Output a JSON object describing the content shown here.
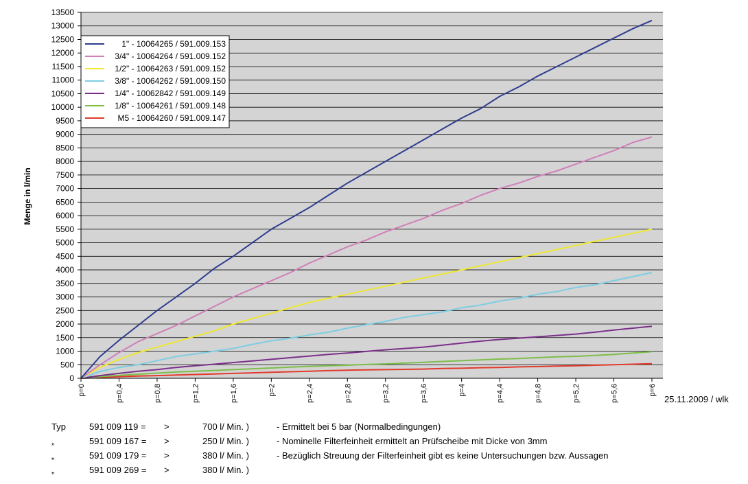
{
  "chart_data": {
    "type": "line",
    "ylabel": "Menge in l/min",
    "xlabel": "",
    "ylim": [
      0,
      13500
    ],
    "yticks": [
      0,
      500,
      1000,
      1500,
      2000,
      2500,
      3000,
      3500,
      4000,
      4500,
      5000,
      5500,
      6000,
      6500,
      7000,
      7500,
      8000,
      8500,
      9000,
      9500,
      10000,
      10500,
      11000,
      11500,
      12000,
      12500,
      13000,
      13500
    ],
    "xlim": [
      0,
      6
    ],
    "xtick_values": [
      0,
      0.4,
      0.8,
      1.2,
      1.6,
      2,
      2.4,
      2.8,
      3.2,
      3.6,
      4,
      4.4,
      4.8,
      5.2,
      5.6,
      6
    ],
    "xtick_labels": [
      "p=0",
      "p=0,4",
      "p=0,8",
      "p=1,2",
      "p=1,6",
      "p=2",
      "p=2,4",
      "p=2,8",
      "p=3,2",
      "p=3,6",
      "p=4",
      "p=4,4",
      "p=4,8",
      "p=5,2",
      "p=5,6",
      "p=6"
    ],
    "grid": true,
    "legend_position": "top-left",
    "x": [
      0,
      0.2,
      0.4,
      0.6,
      0.8,
      1.0,
      1.2,
      1.4,
      1.6,
      1.8,
      2.0,
      2.2,
      2.4,
      2.6,
      2.8,
      3.0,
      3.2,
      3.4,
      3.6,
      3.8,
      4.0,
      4.2,
      4.4,
      4.6,
      4.8,
      5.0,
      5.2,
      5.4,
      5.6,
      5.8,
      6.0
    ],
    "series": [
      {
        "name": "1\" - 10064265 / 591.009.153",
        "color": "#2e3d8f",
        "values": [
          0,
          800,
          1400,
          1950,
          2500,
          3000,
          3500,
          4050,
          4500,
          5000,
          5500,
          5900,
          6300,
          6750,
          7200,
          7600,
          8000,
          8400,
          8800,
          9200,
          9600,
          9950,
          10400,
          10750,
          11150,
          11500,
          11850,
          12200,
          12550,
          12900,
          13200
        ]
      },
      {
        "name": "3/4\" - 10064264 / 591.009.152",
        "color": "#d07fb8",
        "values": [
          0,
          500,
          950,
          1350,
          1650,
          1950,
          2300,
          2650,
          3000,
          3300,
          3600,
          3900,
          4250,
          4550,
          4850,
          5100,
          5400,
          5650,
          5900,
          6200,
          6450,
          6750,
          7000,
          7200,
          7450,
          7650,
          7900,
          8150,
          8400,
          8700,
          8900
        ]
      },
      {
        "name": "1/2\" - 10064263 / 591.009.152",
        "color": "#f0e832",
        "values": [
          0,
          400,
          700,
          950,
          1150,
          1350,
          1550,
          1750,
          2000,
          2200,
          2400,
          2600,
          2800,
          2950,
          3100,
          3250,
          3400,
          3550,
          3700,
          3850,
          4000,
          4150,
          4300,
          4450,
          4600,
          4750,
          4900,
          5050,
          5200,
          5350,
          5500
        ]
      },
      {
        "name": "3/8\" - 10064262 / 591.009.150",
        "color": "#7ccde3",
        "values": [
          0,
          250,
          400,
          500,
          650,
          800,
          900,
          1000,
          1100,
          1250,
          1380,
          1480,
          1600,
          1700,
          1850,
          1980,
          2100,
          2250,
          2350,
          2450,
          2600,
          2700,
          2850,
          2950,
          3100,
          3200,
          3350,
          3450,
          3600,
          3750,
          3900
        ]
      },
      {
        "name": "1/4\" - 10062842 / 591.009.149",
        "color": "#7b2f8a",
        "values": [
          0,
          100,
          180,
          260,
          320,
          400,
          460,
          520,
          580,
          640,
          700,
          760,
          820,
          880,
          930,
          990,
          1050,
          1100,
          1150,
          1220,
          1300,
          1370,
          1430,
          1480,
          1530,
          1580,
          1630,
          1700,
          1780,
          1850,
          1920
        ]
      },
      {
        "name": "1/8\" - 10064261 / 591.009.148",
        "color": "#7dbe4a",
        "values": [
          0,
          60,
          110,
          150,
          190,
          230,
          260,
          290,
          320,
          350,
          380,
          410,
          440,
          460,
          480,
          510,
          530,
          560,
          590,
          620,
          650,
          680,
          710,
          730,
          760,
          790,
          810,
          840,
          880,
          930,
          980
        ]
      },
      {
        "name": "M5 - 10064260 / 591.009.147",
        "color": "#e23a2c",
        "values": [
          0,
          30,
          60,
          80,
          100,
          120,
          140,
          160,
          180,
          200,
          220,
          240,
          260,
          280,
          300,
          310,
          320,
          330,
          340,
          360,
          370,
          390,
          400,
          420,
          430,
          450,
          460,
          480,
          500,
          520,
          540
        ]
      }
    ]
  },
  "date_note": "25.11.2009 / wlk",
  "notes": [
    {
      "typ": "Typ",
      "code": "591 009 119 =",
      "arrow": ">",
      "value": "700 l/ Min. )",
      "remark": "- Ermittelt bei 5 bar (Normalbedingungen)"
    },
    {
      "typ": "„",
      "code": "591 009 167 =",
      "arrow": ">",
      "value": "250 l/ Min. )",
      "remark": "- Nominelle Filterfeinheit ermittelt an Prüfscheibe mit Dicke von 3mm"
    },
    {
      "typ": "„",
      "code": "591 009 179 =",
      "arrow": ">",
      "value": "380 l/ Min. )",
      "remark": "- Bezüglich Streuung der Filterfeinheit gibt es keine Untersuchungen bzw. Aussagen"
    },
    {
      "typ": "„",
      "code": "591 009 269 =",
      "arrow": ">",
      "value": "380 l/ Min. )",
      "remark": ""
    }
  ]
}
